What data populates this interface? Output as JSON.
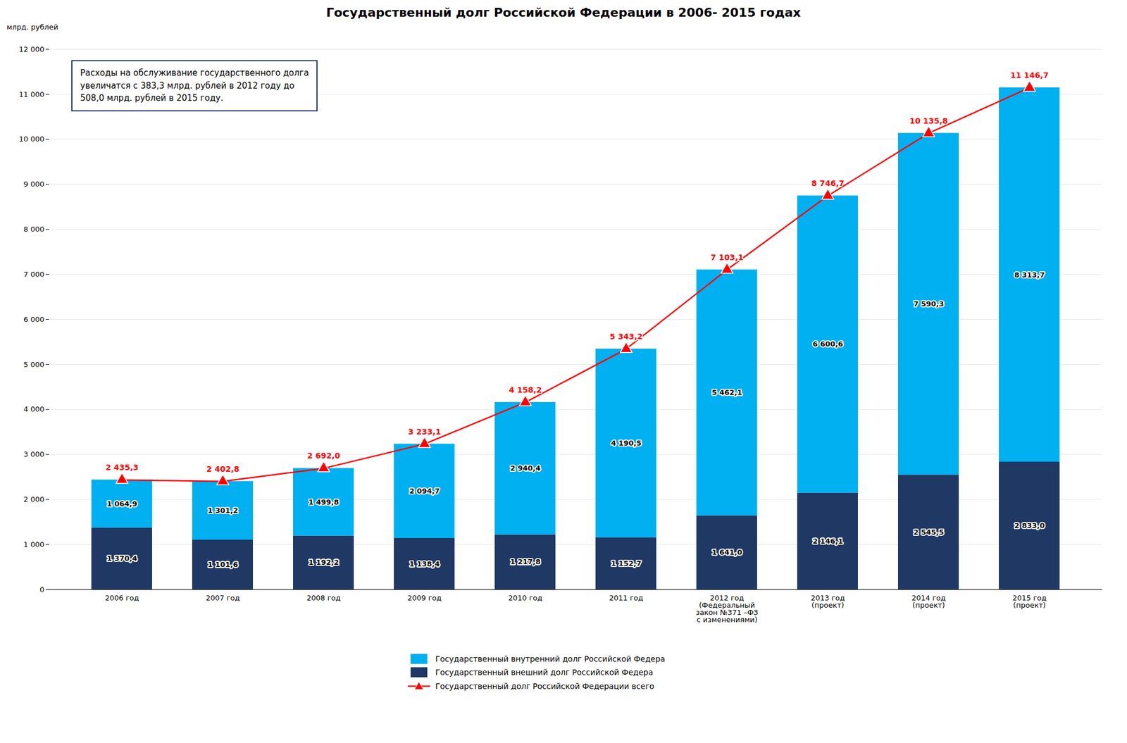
{
  "chart_data": {
    "type": "bar",
    "title": "Государственный долг Российской Федерации в 2006- 2015 годах",
    "ylabel": "млрд. рублей",
    "categories": [
      "2006 год",
      "2007 год",
      "2008 год",
      "2009 год",
      "2010 год",
      "2011 год",
      "2012 год\n(Федеральный\nзакон №371 –ФЗ\nс изменениями)",
      "2013 год\n(проект)",
      "2014 год\n(проект)",
      "2015 год\n(проект)"
    ],
    "stacked": true,
    "data_labels": true,
    "grid": true,
    "legend": "bottom",
    "series": [
      {
        "name": "Государственный внутренний долг Российской Федера",
        "type": "bar",
        "color": "#00b0f0",
        "values": [
          1064.9,
          1301.2,
          1499.8,
          2094.7,
          2940.4,
          4190.5,
          5462.1,
          6600.6,
          7590.3,
          8313.7
        ],
        "value_labels": [
          "1 064,9",
          "1 301,2",
          "1 499,8",
          "2 094,7",
          "2 940,4",
          "4 190,5",
          "5 462,1",
          "6 600,6",
          "7 590,3",
          "8 313,7"
        ]
      },
      {
        "name": "Государственный внешний  долг Российской Федера",
        "type": "bar",
        "color": "#1f3864",
        "values": [
          1370.4,
          1101.6,
          1192.2,
          1138.4,
          1217.8,
          1152.7,
          1641.0,
          2146.1,
          2545.5,
          2833.0
        ],
        "value_labels": [
          "1 370,4",
          "1 101,6",
          "1 192,2",
          "1 138,4",
          "1 217,8",
          "1 152,7",
          "1 641,0",
          "2 146,1",
          "2 545,5",
          "2 833,0"
        ]
      },
      {
        "name": "Государственный долг Российской Федерации всего",
        "type": "line",
        "color": "#ff0000",
        "marker": "triangle",
        "values": [
          2435.3,
          2402.8,
          2692.0,
          3233.1,
          4158.2,
          5343.2,
          7103.1,
          8746.7,
          10135.8,
          11146.7
        ],
        "value_labels": [
          "2 435,3",
          "2 402,8",
          "2 692,0",
          "3 233,1",
          "4 158,2",
          "5 343,2",
          "7 103,1",
          "8 746,7",
          "10 135,8",
          "11 146,7"
        ]
      }
    ],
    "ylim": [
      0,
      12000
    ],
    "yticks": [
      0,
      {
        "value": 1000,
        "label": "1 000"
      },
      {
        "value": 2000,
        "label": "2 000"
      },
      {
        "value": 3000,
        "label": "3 000"
      },
      {
        "value": 4000,
        "label": "4 000"
      },
      {
        "value": 5000,
        "label": "5 000"
      },
      {
        "value": 6000,
        "label": "6 000"
      },
      {
        "value": 7000,
        "label": "7 000"
      },
      {
        "value": 8000,
        "label": "8 000"
      },
      {
        "value": 9000,
        "label": "9 000"
      },
      {
        "value": 10000,
        "label": "10 000"
      },
      {
        "value": 11000,
        "label": "11 000"
      },
      {
        "value": 12000,
        "label": "12 000"
      }
    ],
    "annotations": [
      "Расходы на обслуживание государственного долга\nувеличатся с 383,3 млрд. рублей в 2012 году до\n508,0 млрд. рублей в 2015 году."
    ]
  }
}
